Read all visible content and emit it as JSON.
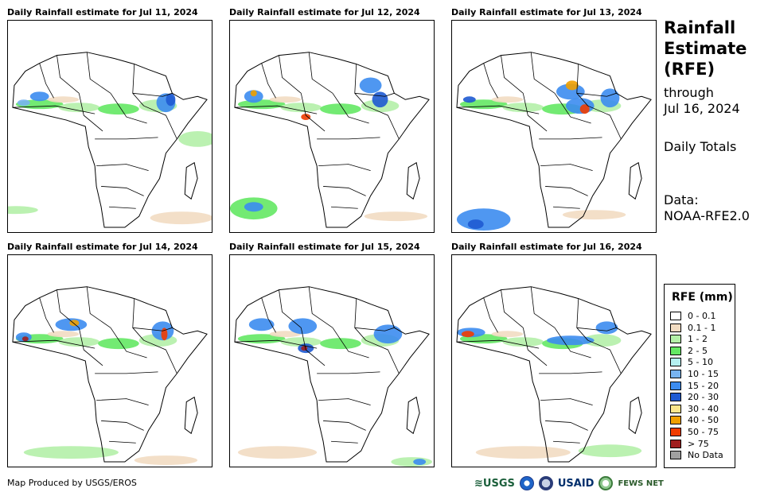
{
  "panels": [
    {
      "title": "Daily Rainfall estimate for Jul 11, 2024"
    },
    {
      "title": "Daily Rainfall estimate for Jul 12, 2024"
    },
    {
      "title": "Daily Rainfall estimate for Jul 13, 2024"
    },
    {
      "title": "Daily Rainfall estimate for Jul 14, 2024"
    },
    {
      "title": "Daily Rainfall estimate for Jul 15, 2024"
    },
    {
      "title": "Daily Rainfall estimate for Jul 16, 2024"
    }
  ],
  "side": {
    "title_line1": "Rainfall",
    "title_line2": "Estimate",
    "title_line3": "(RFE)",
    "through_label": "through",
    "through_date": "Jul 16, 2024",
    "totals": "Daily Totals",
    "data_label": "Data:",
    "data_source": "NOAA-RFE2.0"
  },
  "legend": {
    "title": "RFE (mm)",
    "items": [
      {
        "label": "0 - 0.1",
        "color": "#ffffff"
      },
      {
        "label": "0.1 - 1",
        "color": "#f2dcc2"
      },
      {
        "label": "1 - 2",
        "color": "#b4f0a8"
      },
      {
        "label": "2 - 5",
        "color": "#64e864"
      },
      {
        "label": "5 - 10",
        "color": "#b4f0f0"
      },
      {
        "label": "10 - 15",
        "color": "#78b4f0"
      },
      {
        "label": "15 - 20",
        "color": "#3c8cf0"
      },
      {
        "label": "20 - 30",
        "color": "#1e5ad2"
      },
      {
        "label": "30 - 40",
        "color": "#fae68c"
      },
      {
        "label": "40 - 50",
        "color": "#f0a000"
      },
      {
        "label": "50 - 75",
        "color": "#f03c00"
      },
      {
        "label": "> 75",
        "color": "#a01e1e"
      },
      {
        "label": "No Data",
        "color": "#a0a0a0"
      }
    ]
  },
  "footer": {
    "produced_by": "Map Produced by USGS/EROS",
    "logo_usgs": "USGS",
    "logo_usaid": "USAID",
    "logo_fews": "FEWS NET"
  }
}
